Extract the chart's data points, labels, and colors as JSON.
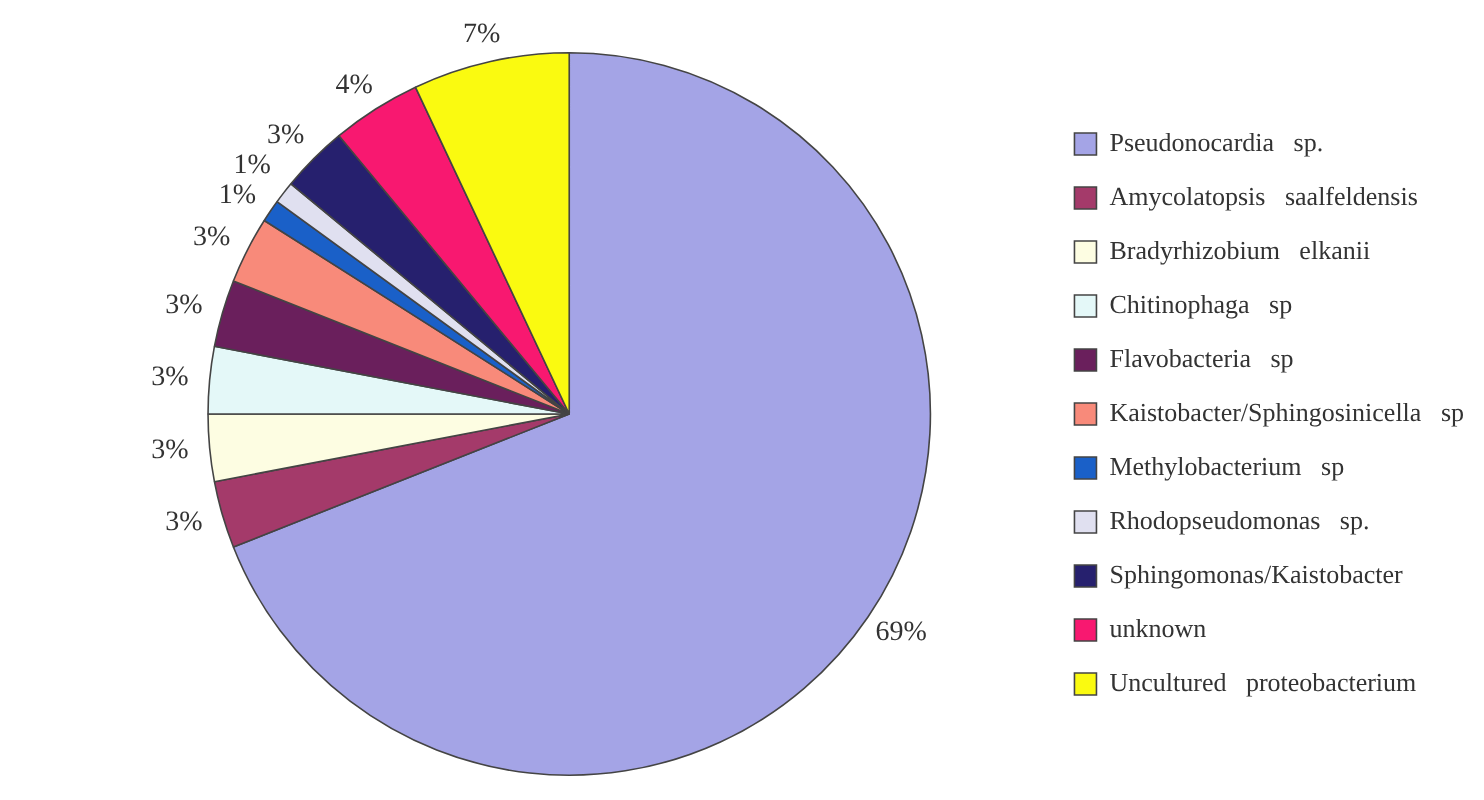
{
  "chart_data": {
    "type": "pie",
    "categories": [
      "Pseudonocardia   sp.",
      "Amycolatopsis   saalfeldensis",
      "Bradyrhizobium   elkanii",
      "Chitinophaga   sp",
      "Flavobacteria   sp",
      "Kaistobacter/Sphingosinicella   sp",
      "Methylobacterium   sp",
      "Rhodopseudomonas   sp.",
      "Sphingomonas/Kaistobacter",
      "unknown",
      "Uncultured   proteobacterium"
    ],
    "values": [
      69,
      3,
      3,
      3,
      3,
      3,
      1,
      1,
      3,
      4,
      7
    ],
    "colors": [
      "#a4a4e6",
      "#a43a6a",
      "#fdfde2",
      "#e4f8f8",
      "#6a1f5c",
      "#f88a7a",
      "#1a60c8",
      "#e0e0f0",
      "#26206e",
      "#f81870",
      "#fafa10"
    ],
    "value_labels": [
      "69%",
      "3%",
      "3%",
      "3%",
      "3%",
      "3%",
      "1%",
      "1%",
      "3%",
      "4%",
      "7%"
    ],
    "legend": "right"
  }
}
